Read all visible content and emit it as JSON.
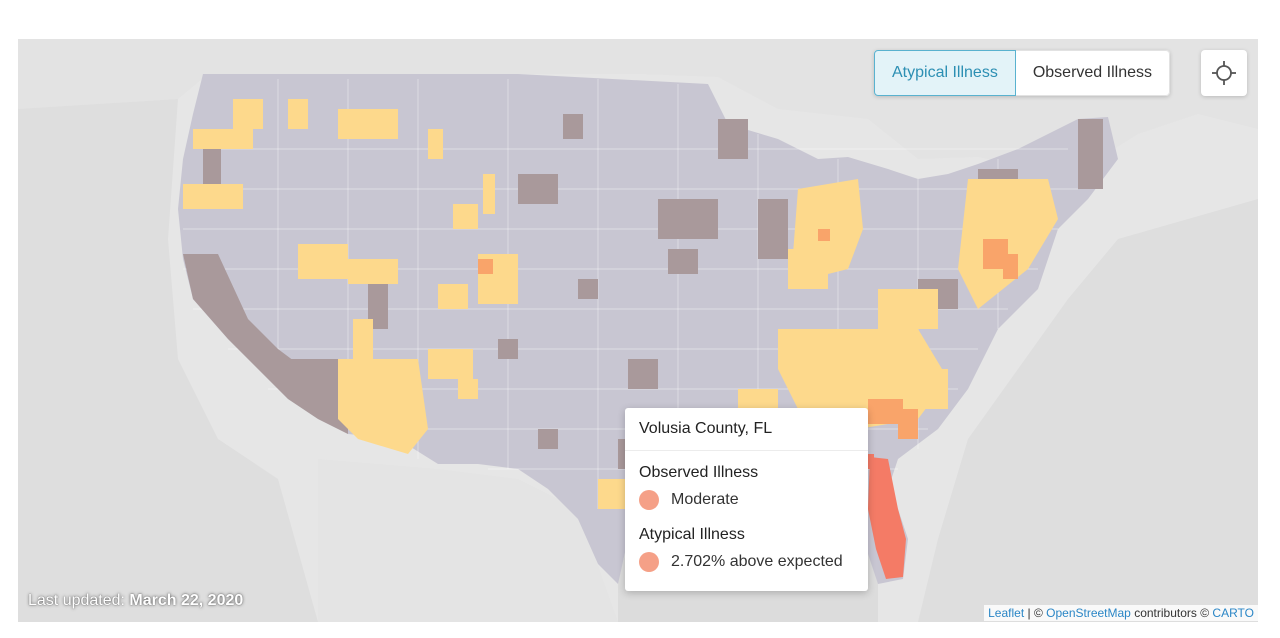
{
  "toggle": {
    "atypical_label": "Atypical Illness",
    "observed_label": "Observed Illness",
    "active": "atypical"
  },
  "locate": {
    "icon": "crosshair-icon"
  },
  "tooltip": {
    "title": "Volusia County, FL",
    "observed_heading": "Observed Illness",
    "observed_value": "Moderate",
    "atypical_heading": "Atypical Illness",
    "atypical_value": "2.702% above expected",
    "dot_color": "#f5a087"
  },
  "footer": {
    "last_updated_label": "Last updated:",
    "last_updated_date": "March 22, 2020"
  },
  "attribution": {
    "leaflet": "Leaflet",
    "sep1": "| ©",
    "osm": "OpenStreetMap",
    "contributors": "contributors ©",
    "carto": "CARTO"
  },
  "colors": {
    "land_default": "#c8c6d2",
    "low": "#a9999b",
    "elevated": "#fdd98c",
    "high": "#f9a46a",
    "very_high": "#f47b66",
    "accent": "#2c8fb3"
  }
}
